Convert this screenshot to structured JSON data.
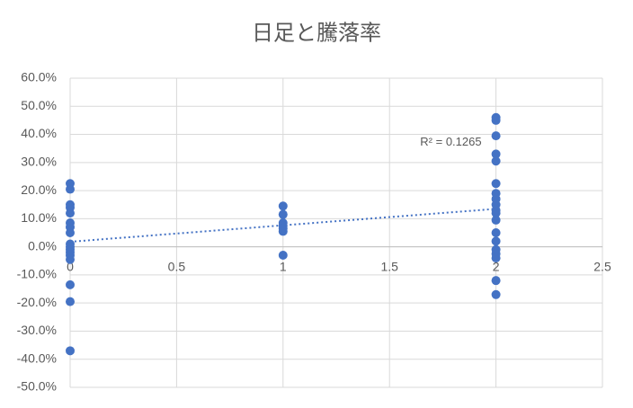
{
  "chart_data": {
    "type": "scatter",
    "title": "日足と騰落率",
    "series": [
      {
        "color": "#4472c4",
        "x": [
          0,
          0,
          0,
          0,
          0,
          0,
          0,
          0,
          0,
          0,
          0,
          0,
          0,
          0,
          0,
          0,
          0,
          1,
          1,
          1,
          1,
          1,
          1,
          1,
          2,
          2,
          2,
          2,
          2,
          2,
          2,
          2,
          2,
          2,
          2,
          2,
          2,
          2,
          2,
          2,
          2,
          2,
          2
        ],
        "values": [
          22.5,
          20.5,
          15,
          14,
          12,
          8.5,
          7,
          5,
          1,
          0,
          -1,
          -2,
          -3,
          -4.5,
          -13.5,
          -19.5,
          -37,
          14.5,
          11.5,
          8.5,
          7.5,
          6.5,
          5.5,
          -3,
          46,
          45,
          39.5,
          33,
          30.5,
          22.5,
          19,
          17,
          15,
          13,
          12,
          9.5,
          5,
          2,
          -1,
          -2.5,
          -4,
          -12,
          -17
        ]
      }
    ],
    "trendline": {
      "x": [
        0,
        2
      ],
      "values": [
        1.8,
        13.5
      ],
      "color": "#4472c4",
      "annotation": "R² = 0.1265"
    },
    "xlim": [
      0,
      2.5
    ],
    "xticks": [
      0,
      0.5,
      1,
      1.5,
      2,
      2.5
    ],
    "ylim": [
      -50,
      60
    ],
    "yticks": [
      {
        "value": -50,
        "label": "-50.0%"
      },
      {
        "value": -40,
        "label": "-40.0%"
      },
      {
        "value": -30,
        "label": "-30.0%"
      },
      {
        "value": -20,
        "label": "-20.0%"
      },
      {
        "value": -10,
        "label": "-10.0%"
      },
      {
        "value": 0,
        "label": "0.0%"
      },
      {
        "value": 10,
        "label": "10.0%"
      },
      {
        "value": 20,
        "label": "20.0%"
      },
      {
        "value": 30,
        "label": "30.0%"
      },
      {
        "value": 40,
        "label": "40.0%"
      },
      {
        "value": 50,
        "label": "50.0%"
      },
      {
        "value": 60,
        "label": "60.0%"
      }
    ],
    "grid": true
  }
}
